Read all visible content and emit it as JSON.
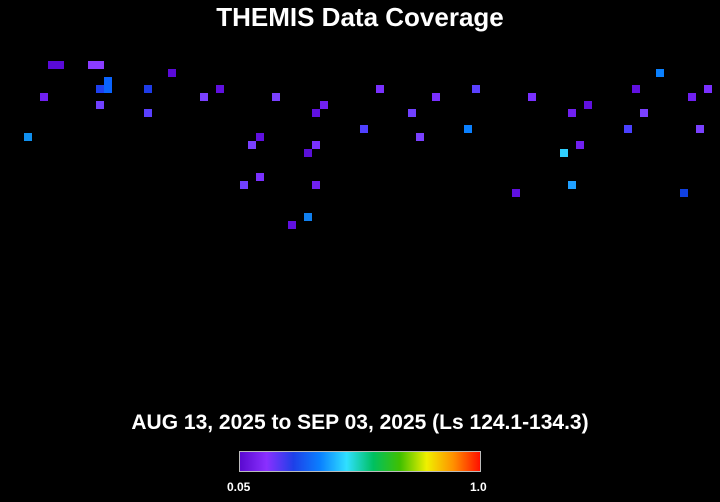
{
  "chart_data": {
    "type": "heatmap",
    "title": "THEMIS Data Coverage",
    "subtitle": "AUG 13, 2025 to SEP 03, 2025 (Ls 124.1-134.3)",
    "grid": false,
    "grid_columns": 90,
    "colorbar": {
      "min_label": "0.05",
      "max_label": "1.0",
      "colors": [
        "#5a0ad0",
        "#8a30ff",
        "#1e40e8",
        "#0a80ff",
        "#30e0ff",
        "#00c060",
        "#40c000",
        "#f0f000",
        "#ff9000",
        "#ff1000"
      ]
    },
    "cells": [
      {
        "col": 6,
        "row": 0,
        "color": "#5a0ad8"
      },
      {
        "col": 7,
        "row": 0,
        "color": "#5a0ad8"
      },
      {
        "col": 11,
        "row": 0,
        "color": "#8a3cff"
      },
      {
        "col": 12,
        "row": 0,
        "color": "#8a3cff"
      },
      {
        "col": 21,
        "row": 1,
        "color": "#5a0ad8"
      },
      {
        "col": 13,
        "row": 2,
        "color": "#0a64ff"
      },
      {
        "col": 13,
        "row": 3,
        "color": "#0a64ff"
      },
      {
        "col": 12,
        "row": 3,
        "color": "#1e40f0"
      },
      {
        "col": 18,
        "row": 3,
        "color": "#1e3ce8"
      },
      {
        "col": 27,
        "row": 3,
        "color": "#6010e0"
      },
      {
        "col": 5,
        "row": 4,
        "color": "#7020f0"
      },
      {
        "col": 25,
        "row": 4,
        "color": "#7a40ff"
      },
      {
        "col": 34,
        "row": 4,
        "color": "#7a40ff"
      },
      {
        "col": 40,
        "row": 5,
        "color": "#7020f0"
      },
      {
        "col": 12,
        "row": 5,
        "color": "#7040ff"
      },
      {
        "col": 18,
        "row": 6,
        "color": "#5a40ff"
      },
      {
        "col": 39,
        "row": 6,
        "color": "#6010e0"
      },
      {
        "col": 3,
        "row": 9,
        "color": "#1090f0"
      },
      {
        "col": 32,
        "row": 9,
        "color": "#6010e0"
      },
      {
        "col": 31,
        "row": 10,
        "color": "#7a40ff"
      },
      {
        "col": 39,
        "row": 10,
        "color": "#7a30ff"
      },
      {
        "col": 38,
        "row": 11,
        "color": "#5a10d8"
      },
      {
        "col": 32,
        "row": 14,
        "color": "#7a30ff"
      },
      {
        "col": 30,
        "row": 15,
        "color": "#7040ff"
      },
      {
        "col": 39,
        "row": 15,
        "color": "#7020f0"
      },
      {
        "col": 38,
        "row": 19,
        "color": "#1080f0"
      },
      {
        "col": 36,
        "row": 20,
        "color": "#6010e0"
      },
      {
        "col": 82,
        "row": 1,
        "color": "#0a80ff"
      },
      {
        "col": 47,
        "row": 3,
        "color": "#7a30ff"
      },
      {
        "col": 59,
        "row": 3,
        "color": "#5a40ff"
      },
      {
        "col": 79,
        "row": 3,
        "color": "#6010e0"
      },
      {
        "col": 88,
        "row": 3,
        "color": "#7a30ff"
      },
      {
        "col": 54,
        "row": 4,
        "color": "#7a30ff"
      },
      {
        "col": 66,
        "row": 4,
        "color": "#7a30ff"
      },
      {
        "col": 86,
        "row": 4,
        "color": "#7020f0"
      },
      {
        "col": 73,
        "row": 5,
        "color": "#6010e0"
      },
      {
        "col": 51,
        "row": 6,
        "color": "#7040ff"
      },
      {
        "col": 71,
        "row": 6,
        "color": "#7020f0"
      },
      {
        "col": 80,
        "row": 6,
        "color": "#7a40ff"
      },
      {
        "col": 45,
        "row": 8,
        "color": "#5040ff"
      },
      {
        "col": 58,
        "row": 8,
        "color": "#0a80ff"
      },
      {
        "col": 78,
        "row": 8,
        "color": "#4a40ff"
      },
      {
        "col": 87,
        "row": 8,
        "color": "#7a40ff"
      },
      {
        "col": 52,
        "row": 9,
        "color": "#7a40ff"
      },
      {
        "col": 72,
        "row": 10,
        "color": "#7020f0"
      },
      {
        "col": 70,
        "row": 11,
        "color": "#30d0ff"
      },
      {
        "col": 71,
        "row": 15,
        "color": "#20a0ff"
      },
      {
        "col": 64,
        "row": 16,
        "color": "#6010e0"
      },
      {
        "col": 85,
        "row": 16,
        "color": "#1040e0"
      }
    ]
  }
}
